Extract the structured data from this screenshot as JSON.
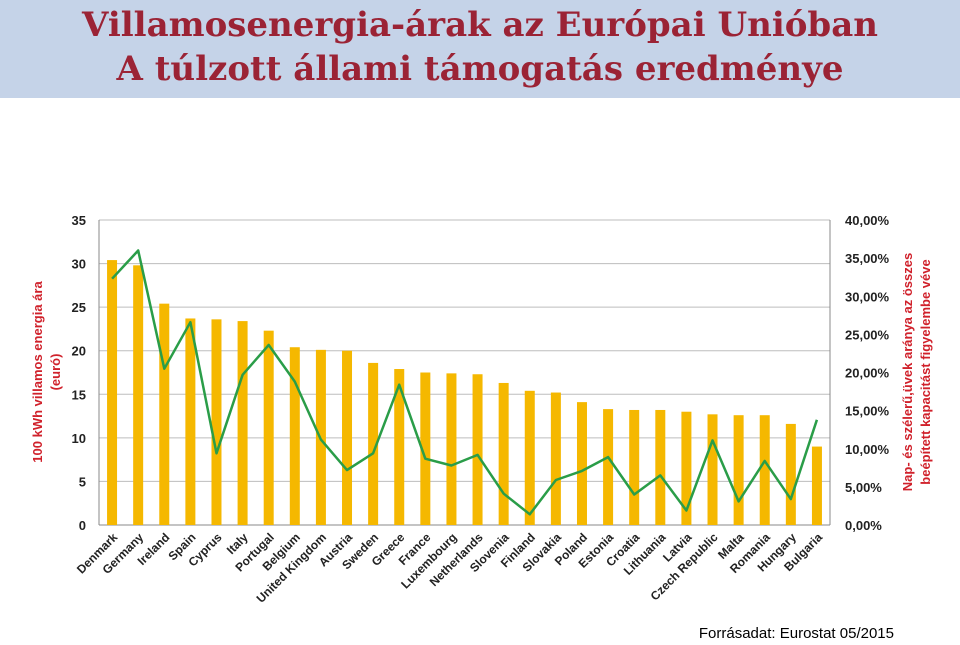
{
  "header": {
    "title_line1": "Villamosenergia-árak az Európai Unióban",
    "title_line2": "A túlzott állami támogatás eredménye"
  },
  "source": "Forrásadat: Eurostat 05/2015",
  "colors": {
    "bar": "#f5b800",
    "line": "#2a9d48",
    "axis_label": "#d0212b",
    "title": "#9b2335",
    "banner": "#c5d3e8"
  },
  "chart_data": {
    "type": "bar",
    "categories": [
      "Denmark",
      "Germany",
      "Ireland",
      "Spain",
      "Cyprus",
      "Italy",
      "Portugal",
      "Belgium",
      "United Kingdom",
      "Austria",
      "Sweden",
      "Greece",
      "France",
      "Luxembourg",
      "Netherlands",
      "Slovenia",
      "Finland",
      "Slovakia",
      "Poland",
      "Estonia",
      "Croatia",
      "Lithuania",
      "Latvia",
      "Czech Republic",
      "Malta",
      "Romania",
      "Hungary",
      "Bulgaria"
    ],
    "series": [
      {
        "axis": "left",
        "type": "bar",
        "values": [
          30.4,
          29.8,
          25.4,
          23.7,
          23.6,
          23.4,
          22.3,
          20.4,
          20.1,
          20.0,
          18.6,
          17.9,
          17.5,
          17.4,
          17.3,
          16.3,
          15.4,
          15.2,
          14.1,
          13.3,
          13.2,
          13.2,
          13.0,
          12.7,
          12.6,
          12.6,
          11.6,
          9.0
        ]
      },
      {
        "axis": "right",
        "type": "line",
        "values": [
          32.3,
          36.0,
          20.5,
          26.6,
          9.4,
          19.7,
          23.6,
          18.8,
          11.2,
          7.2,
          9.4,
          18.4,
          8.7,
          7.8,
          9.2,
          4.1,
          1.4,
          5.9,
          7.1,
          8.9,
          4.0,
          6.5,
          1.9,
          11.1,
          3.1,
          8.4,
          3.4,
          13.8
        ]
      }
    ],
    "ylabel": "100 kWh villamos energia ára (euró)",
    "y2label_line1": "Nap- és szélerű,üvek aránya az összes",
    "y2label_line2": "beépített kapacitást figyelembe véve",
    "ylim": [
      0,
      35
    ],
    "yticks": [
      "0",
      "5",
      "10",
      "15",
      "20",
      "25",
      "30",
      "35"
    ],
    "y2lim": [
      0,
      40
    ],
    "y2ticks": [
      "0,00%",
      "5,00%",
      "10,00%",
      "15,00%",
      "20,00%",
      "25,00%",
      "30,00%",
      "35,00%",
      "40,00%"
    ],
    "grid": true,
    "legend": "none"
  }
}
